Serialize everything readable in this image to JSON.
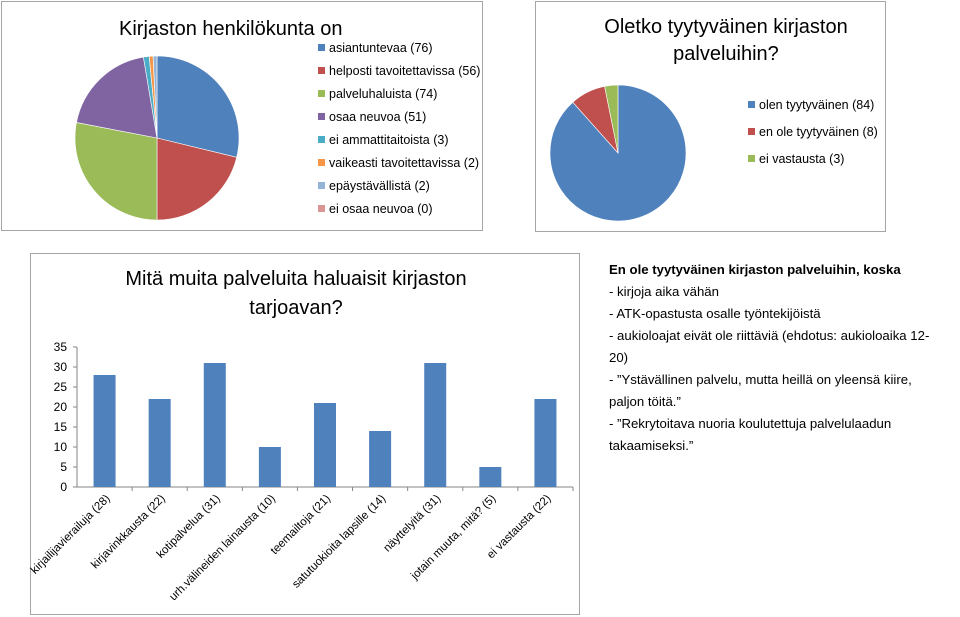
{
  "chart_data": [
    {
      "type": "pie",
      "title": "Kirjaston henkilökunta on",
      "legend_position": "right",
      "slices": [
        {
          "label": "asiantuntevaa (76)",
          "value": 76,
          "color": "#4f81bd"
        },
        {
          "label": "helposti tavoitettavissa (56)",
          "value": 56,
          "color": "#c0504d"
        },
        {
          "label": "palveluhaluista (74)",
          "value": 74,
          "color": "#9bbb59"
        },
        {
          "label": "osaa neuvoa (51)",
          "value": 51,
          "color": "#8064a2"
        },
        {
          "label": "ei ammattitaitoista (3)",
          "value": 3,
          "color": "#4bacc6"
        },
        {
          "label": "vaikeasti tavoitettavissa (2)",
          "value": 2,
          "color": "#f79646"
        },
        {
          "label": "epäystävällistä (2)",
          "value": 2,
          "color": "#95b3d7"
        },
        {
          "label": "ei osaa neuvoa (0)",
          "value": 0,
          "color": "#d99694"
        }
      ]
    },
    {
      "type": "pie",
      "title": "Oletko tyytyväinen kirjaston palveluihin?",
      "title_lines": [
        "Oletko tyytyväinen kirjaston",
        "palveluihin?"
      ],
      "legend_position": "right",
      "slices": [
        {
          "label": "olen tyytyväinen (84)",
          "value": 84,
          "color": "#4f81bd"
        },
        {
          "label": "en ole tyytyväinen (8)",
          "value": 8,
          "color": "#c0504d"
        },
        {
          "label": "ei vastausta (3)",
          "value": 3,
          "color": "#9bbb59"
        }
      ]
    },
    {
      "type": "bar",
      "title": "Mitä muita palveluita haluaisit kirjaston tarjoavan?",
      "title_lines": [
        "Mitä muita palveluita haluaisit kirjaston",
        "tarjoavan?"
      ],
      "categories": [
        "kirjailijavierailuja (28)",
        "kirjavinkkausta (22)",
        "kotipalvelua (31)",
        "urh.välineiden lainausta (10)",
        "teemailtoja (21)",
        "satutuokioita lapsille (14)",
        "näyttelyitä (31)",
        "jotain muuta, mitä? (5)",
        "ei vastausta (22)"
      ],
      "values": [
        28,
        22,
        31,
        10,
        21,
        14,
        31,
        5,
        22
      ],
      "ylim": [
        0,
        35
      ],
      "yticks": [
        "0",
        "5",
        "10",
        "15",
        "20",
        "25",
        "30",
        "35"
      ],
      "color": "#4f81bd",
      "grid": false,
      "legend": false
    }
  ],
  "note": {
    "title": "En ole tyytyväinen kirjaston palveluihin, koska",
    "lines": [
      "- kirjoja aika vähän",
      "- ATK-opastusta osalle työntekijöistä",
      "- aukioloajat eivät ole riittäviä (ehdotus: aukioloaika 12-",
      "20)",
      "- ”Ystävällinen palvelu, mutta heillä on yleensä kiire,",
      "paljon töitä.”",
      "- ”Rekrytoitava nuoria koulutettuja palvelulaadun",
      "takaamiseksi.”"
    ]
  }
}
